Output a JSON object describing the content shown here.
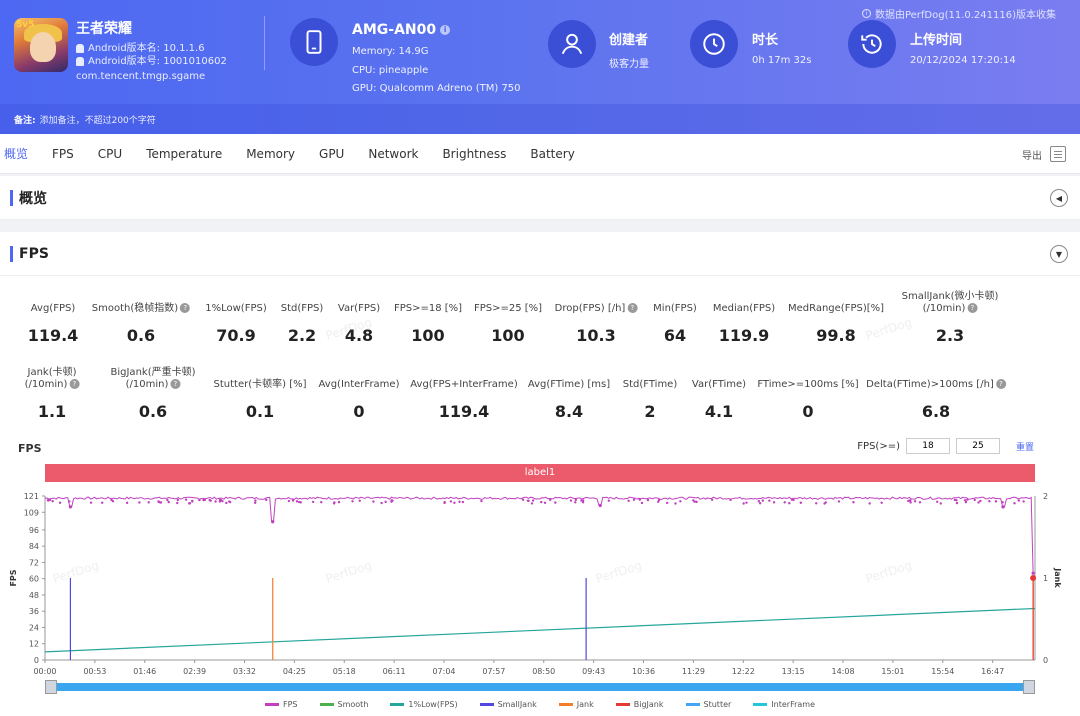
{
  "app": {
    "name": "王者荣耀",
    "icon_badge": "5v5",
    "version_name_label": "Android版本名: 10.1.1.6",
    "version_code_label": "Android版本号: 1001010602",
    "package": "com.tencent.tmgp.sgame"
  },
  "device": {
    "name": "AMG-AN00",
    "memory": "Memory: 14.9G",
    "cpu": "CPU: pineapple",
    "gpu": "GPU: Qualcomm Adreno (TM) 750"
  },
  "creator": {
    "title": "创建者",
    "value": "极客力量"
  },
  "duration": {
    "title": "时长",
    "value": "0h 17m 32s"
  },
  "upload": {
    "title": "上传时间",
    "value": "20/12/2024 17:20:14"
  },
  "source_note": "数据由PerfDog(11.0.241116)版本收集",
  "remark": {
    "label": "备注:",
    "placeholder": "添加备注，不超过200个字符"
  },
  "tabs": [
    "概览",
    "FPS",
    "CPU",
    "Temperature",
    "Memory",
    "GPU",
    "Network",
    "Brightness",
    "Battery"
  ],
  "export_label": "导出",
  "overview_section": {
    "title": "概览"
  },
  "fps_section": {
    "title": "FPS"
  },
  "metrics_row1": [
    {
      "label": "Avg(FPS)",
      "value": "119.4"
    },
    {
      "label": "Smooth(稳帧指数)",
      "value": "0.6",
      "help": true
    },
    {
      "label": "1%Low(FPS)",
      "value": "70.9"
    },
    {
      "label": "Std(FPS)",
      "value": "2.2"
    },
    {
      "label": "Var(FPS)",
      "value": "4.8"
    },
    {
      "label": "FPS>=18 [%]",
      "value": "100"
    },
    {
      "label": "FPS>=25 [%]",
      "value": "100"
    },
    {
      "label": "Drop(FPS) [/h]",
      "value": "10.3",
      "help": true
    },
    {
      "label": "Min(FPS)",
      "value": "64"
    },
    {
      "label": "Median(FPS)",
      "value": "119.9"
    },
    {
      "label": "MedRange(FPS)[%]",
      "value": "99.8"
    },
    {
      "label": "SmallJank(微小卡顿)",
      "label2": "(/10min)",
      "value": "2.3",
      "help": true
    }
  ],
  "metrics_row2": [
    {
      "label": "Jank(卡顿)",
      "label2": "(/10min)",
      "value": "1.1",
      "help": true
    },
    {
      "label": "BigJank(严重卡顿)",
      "label2": "(/10min)",
      "value": "0.6",
      "help": true
    },
    {
      "label": "Stutter(卡顿率) [%]",
      "value": "0.1"
    },
    {
      "label": "Avg(InterFrame)",
      "value": "0"
    },
    {
      "label": "Avg(FPS+InterFrame)",
      "value": "119.4"
    },
    {
      "label": "Avg(FTime) [ms]",
      "value": "8.4"
    },
    {
      "label": "Std(FTime)",
      "value": "2"
    },
    {
      "label": "Var(FTime)",
      "value": "4.1"
    },
    {
      "label": "FTime>=100ms [%]",
      "value": "0"
    },
    {
      "label": "Delta(FTime)>100ms [/h]",
      "value": "6.8",
      "help": true
    }
  ],
  "chart_controls": {
    "title": "FPS",
    "threshold_label": "FPS(>=)",
    "threshold1": "18",
    "threshold2": "25",
    "reset": "重置"
  },
  "label_bar": "label1",
  "watermark": "PerfDog",
  "colors": {
    "header": "#4d68f2",
    "fps": "#c040c0",
    "smooth": "#4caf50",
    "low1": "#26a69a",
    "smalljank": "#5048e0",
    "jank": "#f57c2a",
    "bigjank": "#e53935",
    "stutter": "#42a5f5",
    "interframe": "#26c6da",
    "label_bar": "#ec5b6b",
    "scrollbar": "#3aa6ef"
  },
  "chart_data": {
    "type": "line",
    "title": "FPS",
    "xlabel": "",
    "ylabel": "FPS",
    "y2label": "Jank",
    "ylim": [
      0,
      121
    ],
    "y_ticks": [
      0,
      12,
      24,
      36,
      48,
      60,
      72,
      84,
      96,
      109,
      121
    ],
    "y2lim": [
      0,
      2
    ],
    "y2_ticks": [
      0,
      1,
      2
    ],
    "x_ticks": [
      "00:00",
      "00:53",
      "01:46",
      "02:39",
      "03:32",
      "04:25",
      "05:18",
      "06:11",
      "07:04",
      "07:57",
      "08:50",
      "09:43",
      "10:36",
      "11:29",
      "12:22",
      "13:15",
      "14:08",
      "15:01",
      "15:54",
      "16:47"
    ],
    "duration_s": 1052,
    "series": [
      {
        "name": "FPS",
        "mean": 119.4,
        "min": 64,
        "dips": [
          {
            "t": 27,
            "v": 113
          },
          {
            "t": 242,
            "v": 102
          },
          {
            "t": 590,
            "v": 114
          },
          {
            "t": 1018,
            "v": 113
          },
          {
            "t": 1050,
            "v": 64
          }
        ]
      },
      {
        "name": "Smooth",
        "values": []
      },
      {
        "name": "1%Low(FPS)",
        "x": [
          0,
          1052
        ],
        "y": [
          6,
          38
        ]
      },
      {
        "name": "SmallJank",
        "spikes": [
          {
            "t": 27,
            "v": 1
          },
          {
            "t": 575,
            "v": 1
          }
        ]
      },
      {
        "name": "Jank",
        "spikes": [
          {
            "t": 242,
            "v": 1
          },
          {
            "t": 1050,
            "v": 1
          }
        ]
      },
      {
        "name": "BigJank",
        "spikes": [
          {
            "t": 1050,
            "v": 1
          }
        ]
      },
      {
        "name": "Stutter",
        "values": []
      },
      {
        "name": "InterFrame",
        "values": []
      }
    ],
    "legend": [
      "FPS",
      "Smooth",
      "1%Low(FPS)",
      "SmallJank",
      "Jank",
      "BigJank",
      "Stutter",
      "InterFrame"
    ],
    "legend_position": "bottom"
  }
}
